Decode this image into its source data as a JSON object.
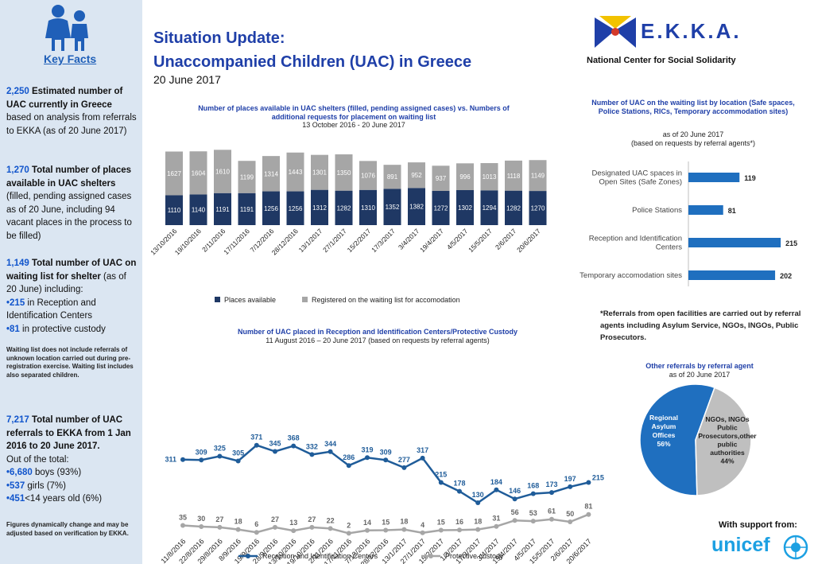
{
  "sidebar": {
    "key_facts_label": "Key Facts",
    "facts": [
      {
        "number": "2,250",
        "bold": " Estimated number of UAC currently in Greece",
        "text": " based on analysis from referrals to EKKA (as of 20 June 2017)"
      },
      {
        "number": "1,270",
        "bold": " Total number of places available in UAC shelters",
        "text": " (filled, pending assigned cases as of 20 June, including 94 vacant places in the process to be filled)"
      },
      {
        "number": "1,149",
        "bold": " Total number of UAC on waiting list for shelter",
        "text": " (as of 20 June) including:"
      }
    ],
    "bullet1_num": "•215",
    "bullet1_text": " in Reception and Identification Centers",
    "bullet2_num": "•81",
    "bullet2_text": " in protective custody",
    "waiting_note": "Waiting list does not include referrals of unknown location carried out during pre-registration exercise. Waiting list includes also separated children.",
    "referrals_num": "7,217",
    "referrals_bold": " Total number of UAC referrals to EKKA from 1 Jan 2016 to 20 June 2017.",
    "out_of_total": "Out of the total:",
    "boys_num": "•6,680",
    "boys_text": " boys (93%)",
    "girls_num": "•537",
    "girls_text": " girls (7%)",
    "young_num": "•451",
    "young_text": "<14 years old (6%)",
    "figures_note": "Figures dynamically change and may be adjusted based on verification by EKKA."
  },
  "header": {
    "title_line1": "Situation Update:",
    "title_line2": "Unaccompanied Children (UAC) in Greece",
    "date": "20 June 2017",
    "org_logo_text": "E.K.K.A.",
    "org_name": "National Center for Social Solidarity"
  },
  "footer": {
    "support_label": "With support from:",
    "unicef_text": "unicef"
  },
  "colors": {
    "navy": "#1f3864",
    "gray": "#a6a6a6",
    "blue": "#1f6fbf",
    "title_blue": "#1f3fa8",
    "sidebar_bg": "#dbe6f2"
  },
  "charts": {
    "shelters": {
      "title": "Number of places available in UAC shelters (filled, pending assigned cases)  vs. Numbers of additional requests for placement on waiting list",
      "subtitle": "13 October 2016 - 20 June 2017"
    },
    "waiting": {
      "title": "Number of UAC on the waiting list by location (Safe spaces, Police Stations, RICs, Temporary accommodation sites)",
      "subtitle1": "as of 20 June 2017",
      "subtitle2": "(based on requests by referral agents*)",
      "footnote": "*Referrals from open facilities are carried out by referral agents including Asylum Service, NGOs, INGOs, Public Prosecutors."
    },
    "ric": {
      "title": "Number of UAC placed in  Reception and Identification Centers/Protective Custody",
      "subtitle": "11 August 2016 – 20 June 2017 (based on requests by referral agents)"
    },
    "pie": {
      "title": "Other referrals by referral agent",
      "subtitle": "as of 20 June 2017"
    }
  },
  "chart_data": [
    {
      "type": "bar",
      "stacked": true,
      "categories": [
        "13/10/2016",
        "19/10/2016",
        "2/11/2016",
        "17/11/2016",
        "7/12/2016",
        "28/12/2016",
        "13/1/2017",
        "27/1/2017",
        "15/2/2017",
        "17/3/2017",
        "3/4/2017",
        "19/4/2017",
        "4/5/2017",
        "15/5/2017",
        "2/6/2017",
        "20/6/2017"
      ],
      "series": [
        {
          "name": "Places available",
          "color": "#1f3864",
          "values": [
            1110,
            1140,
            1191,
            1191,
            1256,
            1256,
            1312,
            1282,
            1310,
            1352,
            1382,
            1272,
            1302,
            1294,
            1282,
            1270
          ]
        },
        {
          "name": "Registered on the waiting list for accomodation",
          "color": "#a6a6a6",
          "values": [
            1627,
            1604,
            1610,
            1199,
            1314,
            1443,
            1301,
            1350,
            1076,
            891,
            952,
            937,
            996,
            1013,
            1118,
            1149
          ]
        }
      ],
      "legend": "bottom"
    },
    {
      "type": "bar",
      "orientation": "horizontal",
      "categories": [
        "Designated UAC spaces in Open Sites (Safe Zones)",
        "Police Stations",
        "Reception and Identification Centers",
        "Temporary accomodation sites"
      ],
      "values": [
        119,
        81,
        215,
        202
      ],
      "color": "#1f6fbf"
    },
    {
      "type": "line",
      "x": [
        "11/8/2016",
        "22/8/2016",
        "29/8/2016",
        "8/9/2016",
        "19/9/2016",
        "28/9/2016",
        "13/10/2016",
        "19/10/2016",
        "2/11/2016",
        "17/11/2016",
        "7/12/2016",
        "28/12/2016",
        "13/1/2017",
        "27/1/2017",
        "15/2/2017",
        "1/3/2017",
        "17/3/2017",
        "3/4/2017",
        "19/4/2017",
        "4/5/2017",
        "15/5/2017",
        "2/6/2017",
        "20/6/2017"
      ],
      "series": [
        {
          "name": "Reception and Identification Centers",
          "color": "#1f5c99",
          "values": [
            311,
            309,
            325,
            305,
            371,
            345,
            368,
            332,
            344,
            286,
            319,
            309,
            277,
            317,
            215,
            178,
            130,
            184,
            146,
            168,
            173,
            197,
            215
          ]
        },
        {
          "name": "Protective custody",
          "color": "#a6a6a6",
          "values": [
            35,
            30,
            27,
            18,
            6,
            27,
            13,
            27,
            22,
            2,
            14,
            15,
            18,
            4,
            15,
            16,
            18,
            31,
            56,
            53,
            61,
            50,
            81
          ]
        }
      ],
      "legend": "bottom"
    },
    {
      "type": "pie",
      "slices": [
        {
          "label": "Regional Asylum Offices",
          "percent_label": "56%",
          "value": 56,
          "color": "#1f6fbf"
        },
        {
          "label": "NGOs, INGOs Public Prosecutors,other public authorities",
          "percent_label": "44%",
          "value": 44,
          "color": "#bfbfbf"
        }
      ]
    }
  ]
}
